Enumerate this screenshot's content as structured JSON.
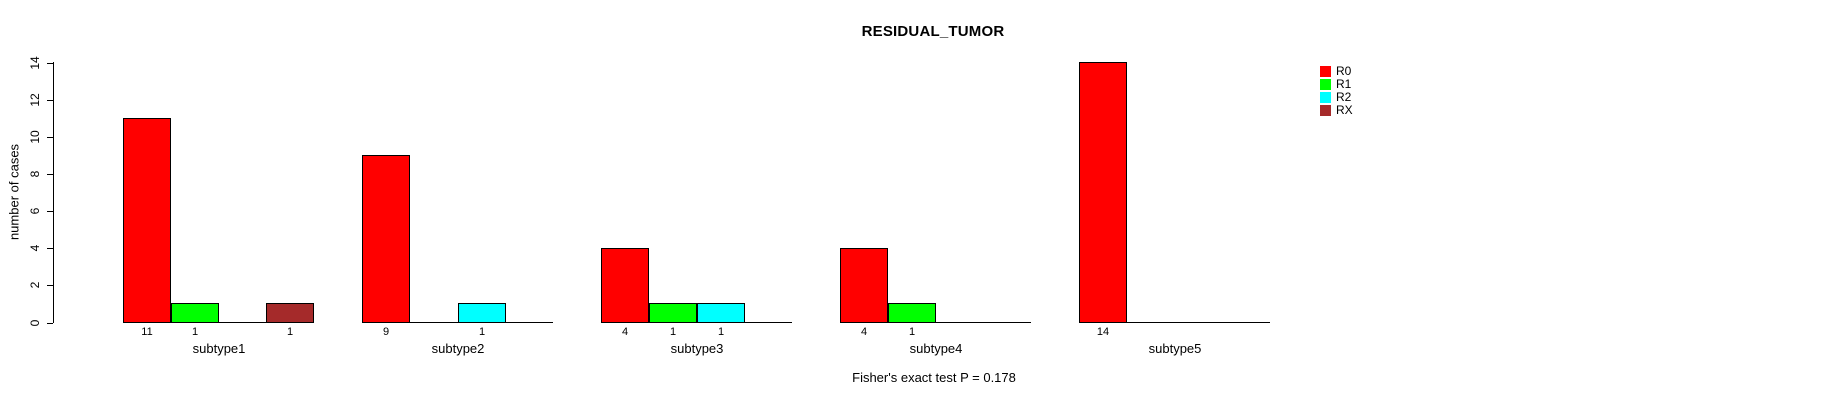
{
  "chart_data": {
    "type": "bar",
    "title": "RESIDUAL_TUMOR",
    "ylabel": "number of cases",
    "ylim": [
      0,
      14
    ],
    "yticks": [
      0,
      2,
      4,
      6,
      8,
      10,
      12,
      14
    ],
    "categories": [
      "subtype1",
      "subtype2",
      "subtype3",
      "subtype4",
      "subtype5"
    ],
    "series": [
      {
        "name": "R0",
        "color": "#FF0000",
        "values": [
          11,
          9,
          4,
          4,
          14
        ]
      },
      {
        "name": "R1",
        "color": "#00FF00",
        "values": [
          1,
          0,
          1,
          1,
          0
        ]
      },
      {
        "name": "R2",
        "color": "#00FFFF",
        "values": [
          0,
          1,
          1,
          0,
          0
        ]
      },
      {
        "name": "RX",
        "color": "#A52A2A",
        "values": [
          1,
          0,
          0,
          0,
          0
        ]
      }
    ],
    "bar_value_labels": {
      "subtype1": {
        "R0": 11,
        "R1": 1,
        "RX": 1
      },
      "subtype2": {
        "R0": 9,
        "R2": 1
      },
      "subtype3": {
        "R0": 4,
        "R1": 1,
        "R2": 1
      },
      "subtype4": {
        "R0": 4,
        "R1": 1
      },
      "subtype5": {
        "R0": 14
      }
    },
    "legend_position": "right",
    "grid": false,
    "annotation": "Fisher's exact test P = 0.178"
  }
}
